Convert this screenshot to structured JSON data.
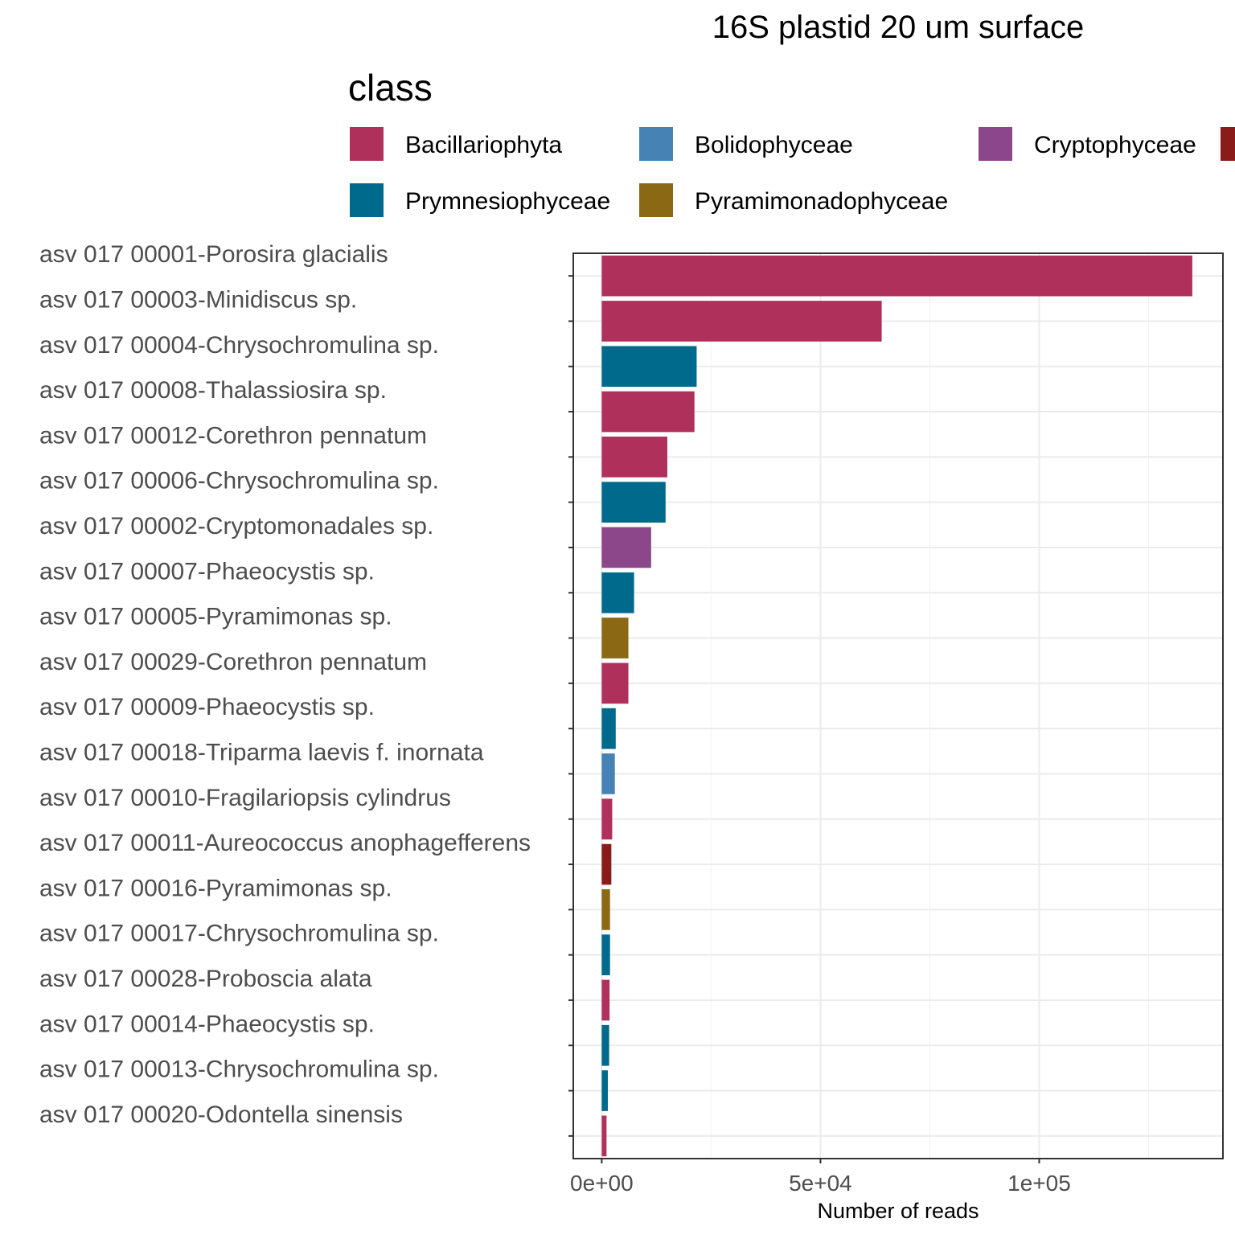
{
  "chart_data": {
    "type": "bar",
    "orientation": "horizontal",
    "title": "16S plastid 20 um surface",
    "xlabel": "Number of reads",
    "ylabel": "",
    "xlim": [
      -6500,
      142000
    ],
    "x_ticks": [
      0,
      50000,
      100000
    ],
    "x_tick_labels": [
      "0e+00",
      "5e+04",
      "1e+05"
    ],
    "grid": true,
    "legend": {
      "title": "class",
      "position": "top",
      "entries": [
        {
          "name": "Bacillariophyta",
          "color": "#B0305C"
        },
        {
          "name": "Bolidophyceae",
          "color": "#4682B4"
        },
        {
          "name": "Cryptophyceae",
          "color": "#8B4789"
        },
        {
          "name": "",
          "color": "#8B1A1A"
        },
        {
          "name": "Prymnesiophyceae",
          "color": "#006A8C"
        },
        {
          "name": "Pyramimonadophyceae",
          "color": "#8B6914"
        }
      ]
    },
    "categories": [
      "asv 017 00001-Porosira glacialis",
      "asv 017 00003-Minidiscus sp.",
      "asv 017 00004-Chrysochromulina sp.",
      "asv 017 00008-Thalassiosira sp.",
      "asv 017 00012-Corethron pennatum",
      "asv 017 00006-Chrysochromulina sp.",
      "asv 017 00002-Cryptomonadales sp.",
      "asv 017 00007-Phaeocystis sp.",
      "asv 017 00005-Pyramimonas sp.",
      "asv 017 00029-Corethron pennatum",
      "asv 017 00009-Phaeocystis sp.",
      "asv 017 00018-Triparma laevis f. inornata",
      "asv 017 00010-Fragilariopsis cylindrus",
      "asv 017 00011-Aureococcus anophagefferens",
      "asv 017 00016-Pyramimonas sp.",
      "asv 017 00017-Chrysochromulina sp.",
      "asv 017 00028-Proboscia alata",
      "asv 017 00014-Phaeocystis sp.",
      "asv 017 00013-Chrysochromulina sp.",
      "asv 017 00020-Odontella sinensis"
    ],
    "values": [
      135000,
      64000,
      21700,
      21200,
      15000,
      14600,
      11300,
      7400,
      6100,
      6100,
      3200,
      3000,
      2400,
      2200,
      1900,
      1900,
      1800,
      1700,
      1400,
      1100
    ],
    "class_index": [
      0,
      0,
      4,
      0,
      0,
      4,
      2,
      4,
      5,
      0,
      4,
      1,
      0,
      3,
      5,
      4,
      0,
      4,
      4,
      0
    ]
  }
}
